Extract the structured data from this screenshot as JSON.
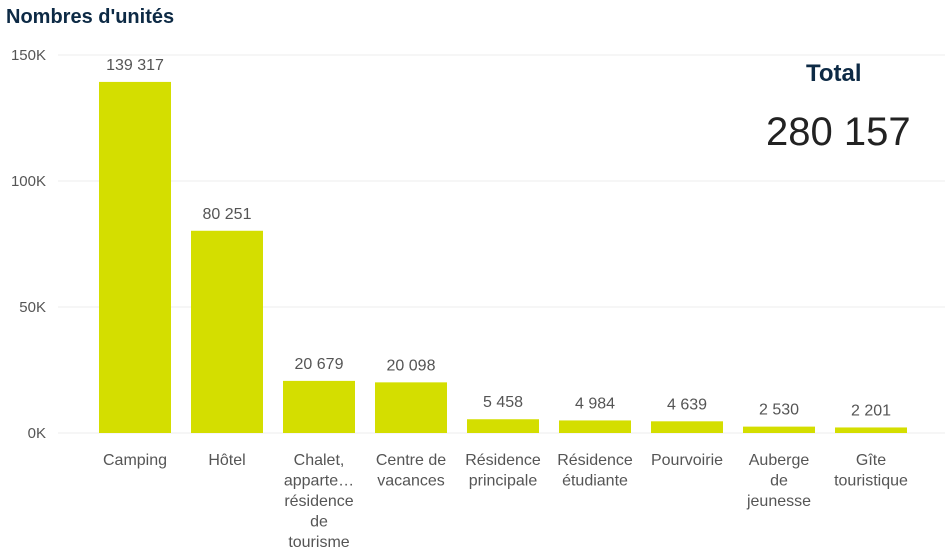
{
  "header": {
    "title": "Nombres d'unités"
  },
  "total": {
    "label": "Total",
    "value": "280 157"
  },
  "colors": {
    "bar": "#d4de00",
    "grid": "#eeeeee",
    "title": "#0d2a45",
    "text": "#555555"
  },
  "chart_data": {
    "type": "bar",
    "title": "Nombres d'unités",
    "xlabel": "",
    "ylabel": "",
    "ylim": [
      0,
      150000
    ],
    "yticks": [
      0,
      50000,
      100000,
      150000
    ],
    "ytick_labels": [
      "0K",
      "50K",
      "100K",
      "150K"
    ],
    "categories": [
      [
        "Camping"
      ],
      [
        "Hôtel"
      ],
      [
        "Chalet,",
        "apparte…",
        "résidence",
        "de",
        "tourisme"
      ],
      [
        "Centre de",
        "vacances"
      ],
      [
        "Résidence",
        "principale"
      ],
      [
        "Résidence",
        "étudiante"
      ],
      [
        "Pourvoirie"
      ],
      [
        "Auberge",
        "de",
        "jeunesse"
      ],
      [
        "Gîte",
        "touristique"
      ]
    ],
    "values": [
      139317,
      80251,
      20679,
      20098,
      5458,
      4984,
      4639,
      2530,
      2201
    ],
    "data_labels": [
      "139 317",
      "80 251",
      "20 679",
      "20 098",
      "5 458",
      "4 984",
      "4 639",
      "2 530",
      "2 201"
    ]
  }
}
